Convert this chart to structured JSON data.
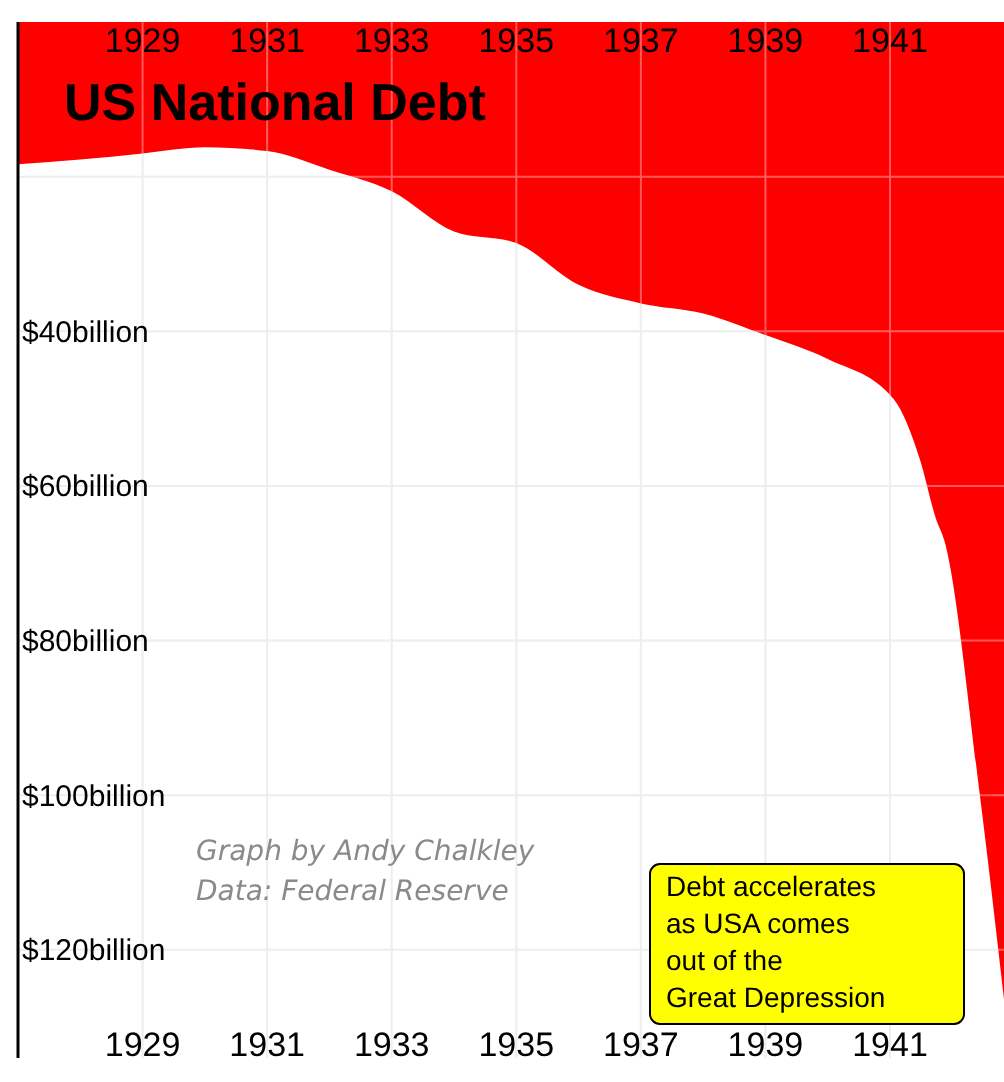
{
  "chart_data": {
    "type": "area",
    "title": "US National Debt",
    "x": [
      1927,
      1928,
      1929,
      1930,
      1931,
      1932,
      1933,
      1934,
      1935,
      1936,
      1937,
      1938,
      1939,
      1940,
      1941.06,
      1941.48,
      1941.74,
      1941.87,
      1942.45,
      1942.83
    ],
    "series": [
      {
        "color": "#ff0000",
        "values": [
          18.4,
          17.8,
          17.0,
          16.2,
          16.7,
          19.1,
          21.9,
          27.1,
          28.6,
          34.0,
          36.4,
          37.7,
          40.5,
          43.6,
          48.8,
          56.6,
          64.3,
          67,
          100.5,
          126.4
        ]
      }
    ],
    "xlim": [
      1927,
      1942.83
    ],
    "xticks": [
      1929,
      1931,
      1933,
      1935,
      1937,
      1939,
      1941
    ],
    "x2lim": [
      1927,
      1942.83
    ],
    "x2ticks": [
      1929,
      1931,
      1933,
      1935,
      1937,
      1939,
      1941
    ],
    "ylim": [
      134,
      0
    ],
    "yticks": [
      {
        "value": 20,
        "label": null
      },
      {
        "value": 40,
        "label": "$40billion"
      },
      {
        "value": 60,
        "label": "$60billion"
      },
      {
        "value": 80,
        "label": "$80billion"
      },
      {
        "value": 100,
        "label": "$100billion"
      },
      {
        "value": 120,
        "label": "$120billion"
      }
    ],
    "grid": true,
    "annotations": [
      "Graph by Andy Chalkley",
      "Data: Federal Reserve",
      "Debt accelerates\nas USA comes\nout of the\nGreat Depression"
    ]
  }
}
